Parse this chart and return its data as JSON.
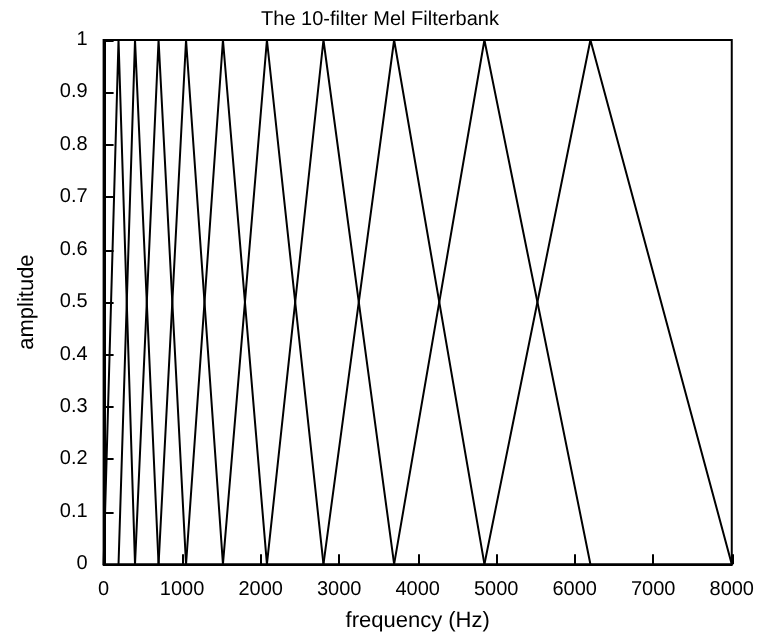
{
  "chart_data": {
    "type": "line",
    "title": "The 10-filter Mel Filterbank",
    "xlabel": "frequency (Hz)",
    "ylabel": "amplitude",
    "series": [
      {
        "color": "#000000",
        "x": [
          0,
          190,
          400
        ],
        "values": [
          0,
          1,
          0
        ]
      },
      {
        "color": "#000000",
        "x": [
          190,
          400,
          700
        ],
        "values": [
          0,
          1,
          0
        ]
      },
      {
        "color": "#000000",
        "x": [
          400,
          700,
          1050
        ],
        "values": [
          0,
          1,
          0
        ]
      },
      {
        "color": "#000000",
        "x": [
          700,
          1050,
          1520
        ],
        "values": [
          0,
          1,
          0
        ]
      },
      {
        "color": "#000000",
        "x": [
          1050,
          1520,
          2080
        ],
        "values": [
          0,
          1,
          0
        ]
      },
      {
        "color": "#000000",
        "x": [
          1520,
          2080,
          2800
        ],
        "values": [
          0,
          1,
          0
        ]
      },
      {
        "color": "#000000",
        "x": [
          2080,
          2800,
          3700
        ],
        "values": [
          0,
          1,
          0
        ]
      },
      {
        "color": "#000000",
        "x": [
          2800,
          3700,
          4850
        ],
        "values": [
          0,
          1,
          0
        ]
      },
      {
        "color": "#000000",
        "x": [
          3700,
          4850,
          6200
        ],
        "values": [
          0,
          1,
          0
        ]
      },
      {
        "color": "#000000",
        "x": [
          4850,
          6200,
          8000
        ],
        "values": [
          0,
          1,
          0
        ]
      }
    ],
    "xlim": [
      0,
      8000
    ],
    "xticks": [
      0,
      1000,
      2000,
      3000,
      4000,
      5000,
      6000,
      7000,
      8000
    ],
    "ylim": [
      0,
      1
    ],
    "yticks": [
      0,
      0.1,
      0.2,
      0.3,
      0.4,
      0.5,
      0.6,
      0.7,
      0.8,
      0.9,
      1
    ],
    "grid": false,
    "marker": "none",
    "line_style": "solid"
  }
}
